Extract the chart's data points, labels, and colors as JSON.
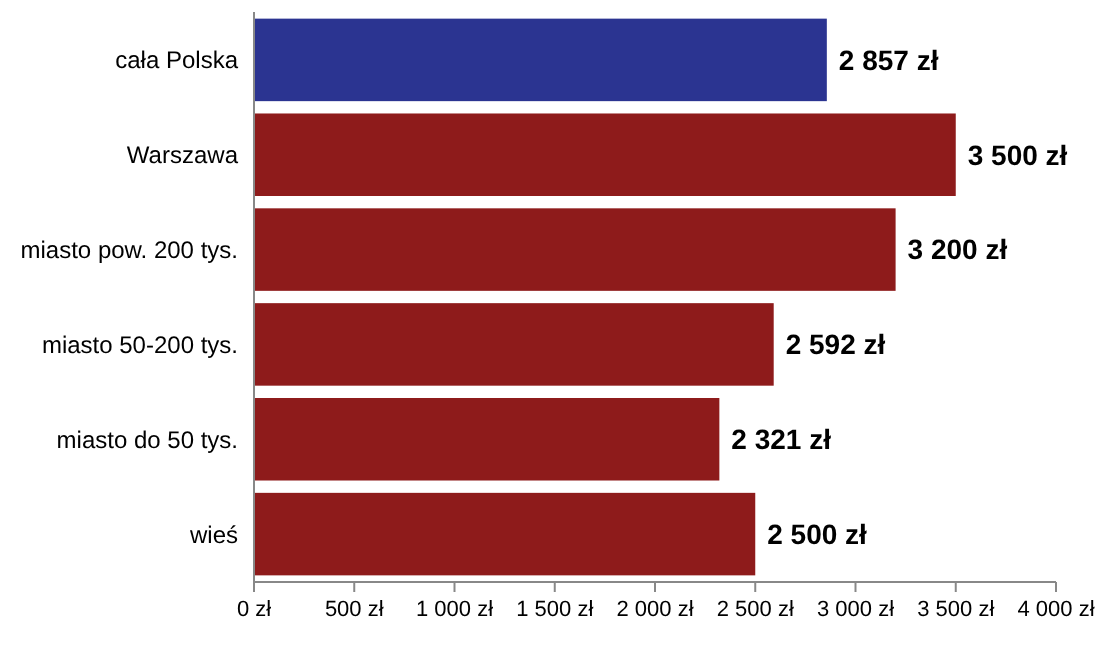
{
  "chart_data": {
    "type": "bar",
    "orientation": "horizontal",
    "categories": [
      "cała Polska",
      "Warszawa",
      "miasto pow. 200 tys.",
      "miasto 50-200 tys.",
      "miasto do 50 tys.",
      "wieś"
    ],
    "values": [
      2857,
      3500,
      3200,
      2592,
      2321,
      2500
    ],
    "colors": [
      "#2b3491",
      "#8e1b1b",
      "#8e1b1b",
      "#8e1b1b",
      "#8e1b1b",
      "#8e1b1b"
    ],
    "value_labels": [
      "2 857 zł",
      "3 500 zł",
      "3 200 zł",
      "2 592 zł",
      "2 321 zł",
      "2 500 zł"
    ],
    "xlim": [
      0,
      4000
    ],
    "xticks": [
      {
        "value": 0,
        "label": "0 zł"
      },
      {
        "value": 500,
        "label": "500 zł"
      },
      {
        "value": 1000,
        "label": "1 000 zł"
      },
      {
        "value": 1500,
        "label": "1 500 zł"
      },
      {
        "value": 2000,
        "label": "2 000 zł"
      },
      {
        "value": 2500,
        "label": "2 500 zł"
      },
      {
        "value": 3000,
        "label": "3 000 zł"
      },
      {
        "value": 3500,
        "label": "3 500 zł"
      },
      {
        "value": 4000,
        "label": "4 000 zł"
      }
    ],
    "grid": false
  }
}
